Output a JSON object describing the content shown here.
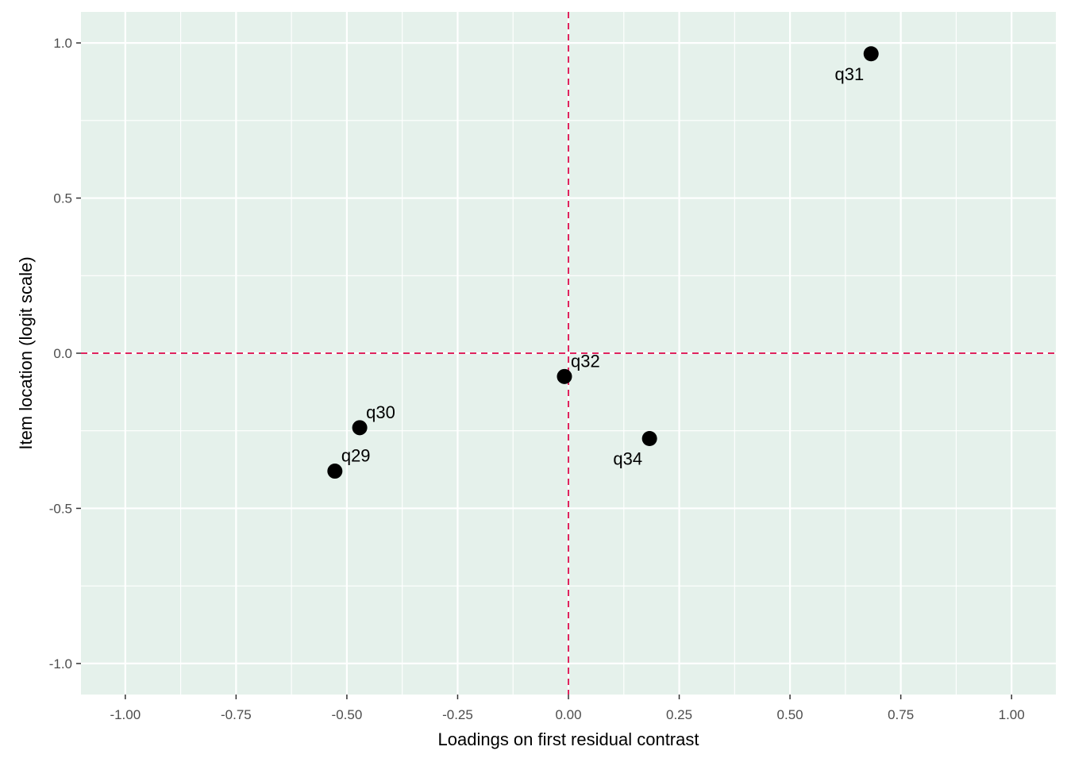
{
  "chart_data": {
    "type": "scatter",
    "title": "",
    "xlabel": "Loadings on first residual contrast",
    "ylabel": "Item location (logit scale)",
    "xlim": [
      -1.1,
      1.1
    ],
    "ylim": [
      -1.1,
      1.1
    ],
    "x_ticks": [
      -1.0,
      -0.75,
      -0.5,
      -0.25,
      0.0,
      0.25,
      0.5,
      0.75,
      1.0
    ],
    "x_tick_labels": [
      "-1.00",
      "-0.75",
      "-0.50",
      "-0.25",
      "0.00",
      "0.25",
      "0.50",
      "0.75",
      "1.00"
    ],
    "y_ticks": [
      -1.0,
      -0.5,
      0.0,
      0.5,
      1.0
    ],
    "y_tick_labels": [
      "-1.0",
      "-0.5",
      "0.0",
      "0.5",
      "1.0"
    ],
    "grid": true,
    "reference_lines": {
      "x": 0.0,
      "y": 0.0
    },
    "points": [
      {
        "label": "q29",
        "x": -0.527,
        "y": -0.38,
        "label_side": "upper-right"
      },
      {
        "label": "q30",
        "x": -0.471,
        "y": -0.24,
        "label_side": "upper-right"
      },
      {
        "label": "q31",
        "x": 0.683,
        "y": 0.965,
        "label_side": "lower-left"
      },
      {
        "label": "q32",
        "x": -0.009,
        "y": -0.075,
        "label_side": "upper-right"
      },
      {
        "label": "q34",
        "x": 0.183,
        "y": -0.275,
        "label_side": "lower-left"
      }
    ]
  },
  "colors": {
    "panel_background": "#e5f1eb",
    "grid": "#ffffff",
    "reference_line": "#e0245e",
    "point": "#000000"
  }
}
